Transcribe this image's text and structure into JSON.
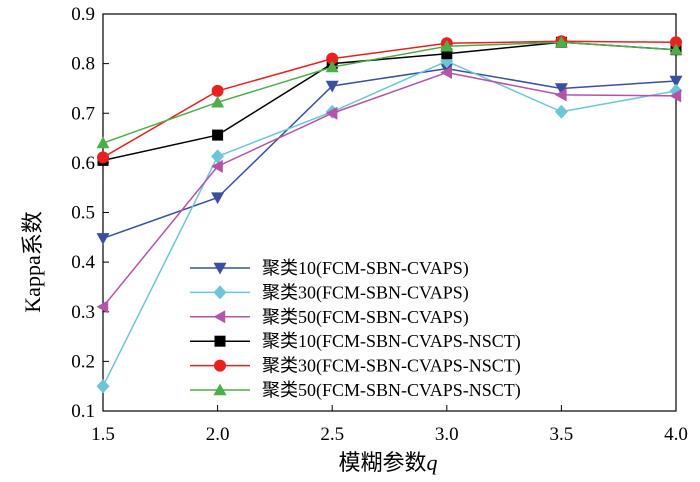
{
  "chart_data": {
    "type": "line",
    "title": "",
    "xlabel": "模糊参数",
    "xlabel_var": "q",
    "ylabel": "Kappa系数",
    "x": [
      1.5,
      2.0,
      2.5,
      3.0,
      3.5,
      4.0
    ],
    "x_tick_labels": [
      "1.5",
      "2.0",
      "2.5",
      "3.0",
      "3.5",
      "4.0"
    ],
    "y_tick_values": [
      0.1,
      0.2,
      0.3,
      0.4,
      0.5,
      0.6,
      0.7,
      0.8,
      0.9
    ],
    "y_tick_labels": [
      "0.1",
      "0.2",
      "0.3",
      "0.4",
      "0.5",
      "0.6",
      "0.7",
      "0.8",
      "0.9"
    ],
    "xlim": [
      1.5,
      4.0
    ],
    "ylim": [
      0.1,
      0.9
    ],
    "grid": false,
    "legend_position": "lower-center",
    "series": [
      {
        "name": "聚类10(FCM-SBN-CVAPS)",
        "color": "#3a4fa0",
        "marker": "triangle-down",
        "values": [
          0.448,
          0.53,
          0.755,
          0.79,
          0.75,
          0.765
        ]
      },
      {
        "name": "聚类30(FCM-SBN-CVAPS)",
        "color": "#6cc6d8",
        "marker": "diamond",
        "values": [
          0.15,
          0.613,
          0.703,
          0.805,
          0.703,
          0.745
        ]
      },
      {
        "name": "聚类50(FCM-SBN-CVAPS)",
        "color": "#b553a6",
        "marker": "triangle-left",
        "values": [
          0.31,
          0.593,
          0.7,
          0.782,
          0.737,
          0.735
        ]
      },
      {
        "name": "聚类10(FCM-SBN-CVAPS-NSCT)",
        "color": "#000000",
        "marker": "square",
        "values": [
          0.605,
          0.656,
          0.8,
          0.82,
          0.843,
          0.828
        ]
      },
      {
        "name": "聚类30(FCM-SBN-CVAPS-NSCT)",
        "color": "#e8201e",
        "marker": "circle",
        "values": [
          0.611,
          0.745,
          0.81,
          0.841,
          0.845,
          0.843
        ]
      },
      {
        "name": "聚类50(FCM-SBN-CVAPS-NSCT)",
        "color": "#4cae48",
        "marker": "triangle-up",
        "values": [
          0.64,
          0.722,
          0.793,
          0.835,
          0.843,
          0.828
        ]
      }
    ]
  }
}
